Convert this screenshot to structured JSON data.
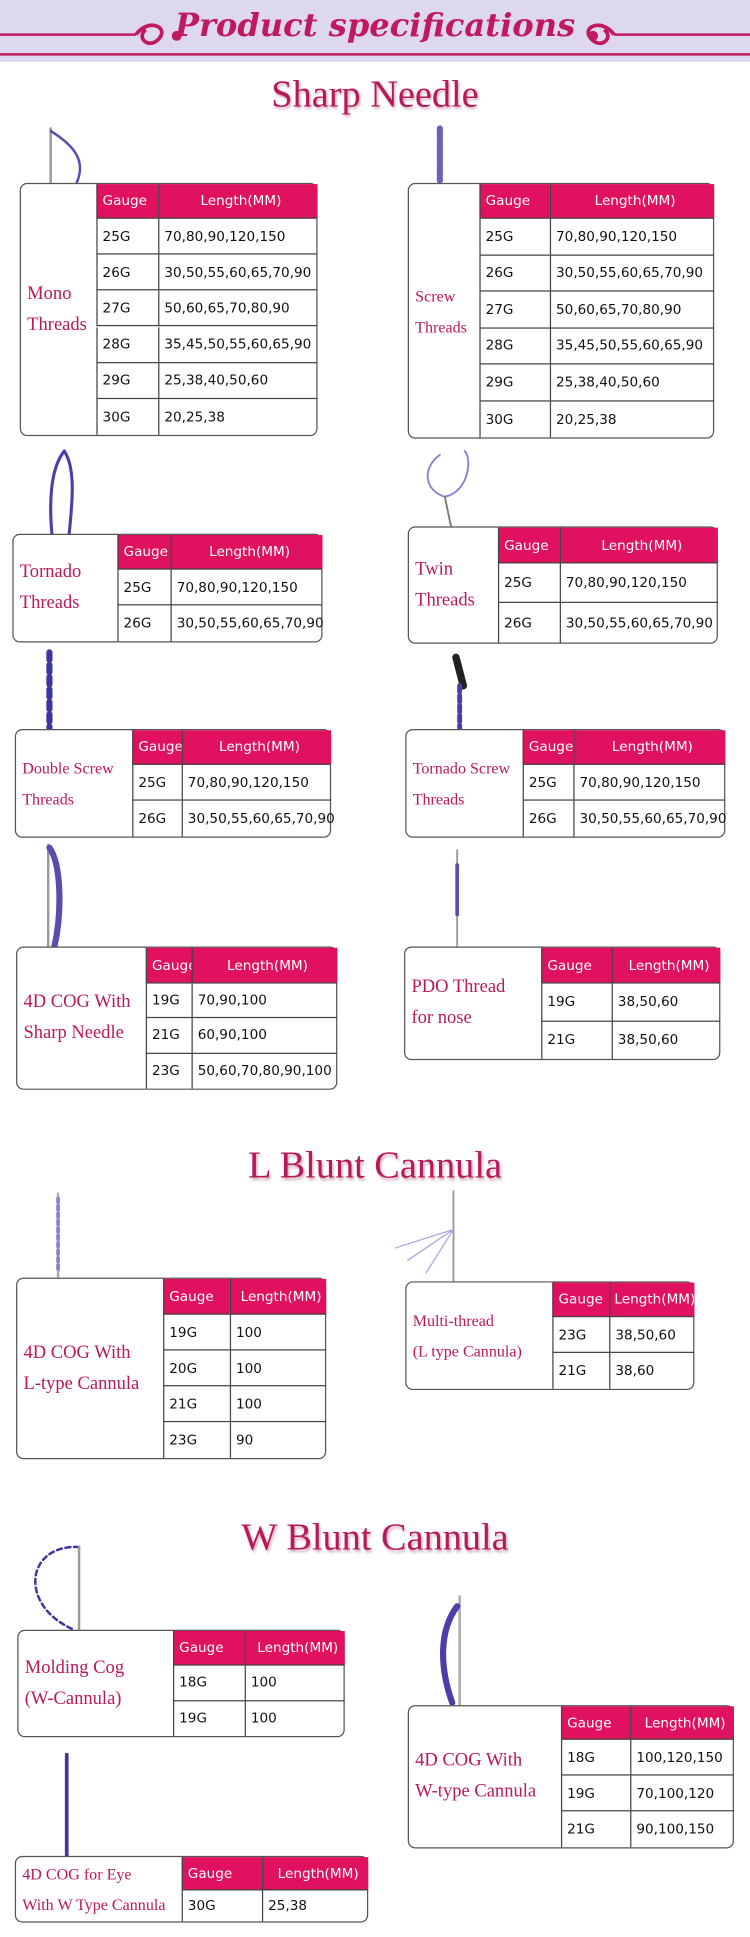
{
  "header": {
    "title": "Product specifications"
  },
  "sections": [
    {
      "title": "Sharp Needle",
      "products": [
        {
          "name_lines": [
            "Mono",
            "Threads"
          ],
          "columns": [
            "Gauge",
            "Length(MM)"
          ],
          "rows": [
            [
              "25G",
              "70,80,90,120,150"
            ],
            [
              "26G",
              "30,50,55,60,65,70,90"
            ],
            [
              "27G",
              "50,60,65,70,80,90"
            ],
            [
              "28G",
              "35,45,50,55,60,65,90"
            ],
            [
              "29G",
              "25,38,40,50,60"
            ],
            [
              "30G",
              "20,25,38"
            ]
          ]
        },
        {
          "name_lines": [
            "Screw",
            "Threads"
          ],
          "columns": [
            "Gauge",
            "Length(MM)"
          ],
          "rows": [
            [
              "25G",
              "70,80,90,120,150"
            ],
            [
              "26G",
              "30,50,55,60,65,70,90"
            ],
            [
              "27G",
              "50,60,65,70,80,90"
            ],
            [
              "28G",
              "35,45,50,55,60,65,90"
            ],
            [
              "29G",
              "25,38,40,50,60"
            ],
            [
              "30G",
              "20,25,38"
            ]
          ]
        },
        {
          "name_lines": [
            "Tornado",
            "Threads"
          ],
          "columns": [
            "Gauge",
            "Length(MM)"
          ],
          "rows": [
            [
              "25G",
              "70,80,90,120,150"
            ],
            [
              "26G",
              "30,50,55,60,65,70,90"
            ]
          ]
        },
        {
          "name_lines": [
            "Twin",
            "Threads"
          ],
          "columns": [
            "Gauge",
            "Length(MM)"
          ],
          "rows": [
            [
              "25G",
              "70,80,90,120,150"
            ],
            [
              "26G",
              "30,50,55,60,65,70,90"
            ]
          ]
        },
        {
          "name_lines": [
            "Double Screw",
            "Threads"
          ],
          "columns": [
            "Gauge",
            "Length(MM)"
          ],
          "rows": [
            [
              "25G",
              "70,80,90,120,150"
            ],
            [
              "26G",
              "30,50,55,60,65,70,90"
            ]
          ]
        },
        {
          "name_lines": [
            "Tornado Screw",
            "Threads"
          ],
          "columns": [
            "Gauge",
            "Length(MM)"
          ],
          "rows": [
            [
              "25G",
              "70,80,90,120,150"
            ],
            [
              "26G",
              "30,50,55,60,65,70,90"
            ]
          ]
        },
        {
          "name_lines": [
            "4D COG With",
            "Sharp Needle"
          ],
          "columns": [
            "Gauge",
            "Length(MM)"
          ],
          "rows": [
            [
              "19G",
              "70,90,100"
            ],
            [
              "21G",
              "60,90,100"
            ],
            [
              "23G",
              "50,60,70,80,90,100"
            ]
          ]
        },
        {
          "name_lines": [
            "PDO Thread",
            "for nose"
          ],
          "columns": [
            "Gauge",
            "Length(MM)"
          ],
          "rows": [
            [
              "19G",
              "38,50,60"
            ],
            [
              "21G",
              "38,50,60"
            ]
          ]
        }
      ]
    },
    {
      "title": "L Blunt Cannula",
      "products": [
        {
          "name_lines": [
            "4D COG With",
            "L-type Cannula"
          ],
          "columns": [
            "Gauge",
            "Length(MM)"
          ],
          "rows": [
            [
              "19G",
              "100"
            ],
            [
              "20G",
              "100"
            ],
            [
              "21G",
              "100"
            ],
            [
              "23G",
              "90"
            ]
          ]
        },
        {
          "name_lines": [
            "Multi-thread",
            "(L type Cannula)"
          ],
          "columns": [
            "Gauge",
            "Length(MM)"
          ],
          "rows": [
            [
              "23G",
              "38,50,60"
            ],
            [
              "21G",
              "38,60"
            ]
          ]
        }
      ]
    },
    {
      "title": "W Blunt Cannula",
      "products": [
        {
          "name_lines": [
            "Molding Cog",
            "(W-Cannula)"
          ],
          "columns": [
            "Gauge",
            "Length(MM)"
          ],
          "rows": [
            [
              "18G",
              "100"
            ],
            [
              "19G",
              "100"
            ]
          ]
        },
        {
          "name_lines": [
            "4D COG With",
            "W-type Cannula"
          ],
          "columns": [
            "Gauge",
            "Length(MM)"
          ],
          "rows": [
            [
              "18G",
              "100,120,150"
            ],
            [
              "19G",
              "70,100,120"
            ],
            [
              "21G",
              "90,100,150"
            ]
          ]
        },
        {
          "name_lines": [
            "4D COG for Eye",
            "With W Type Cannula"
          ],
          "columns": [
            "Gauge",
            "Length(MM)"
          ],
          "rows": [
            [
              "30G",
              "25,38"
            ]
          ]
        }
      ]
    }
  ]
}
